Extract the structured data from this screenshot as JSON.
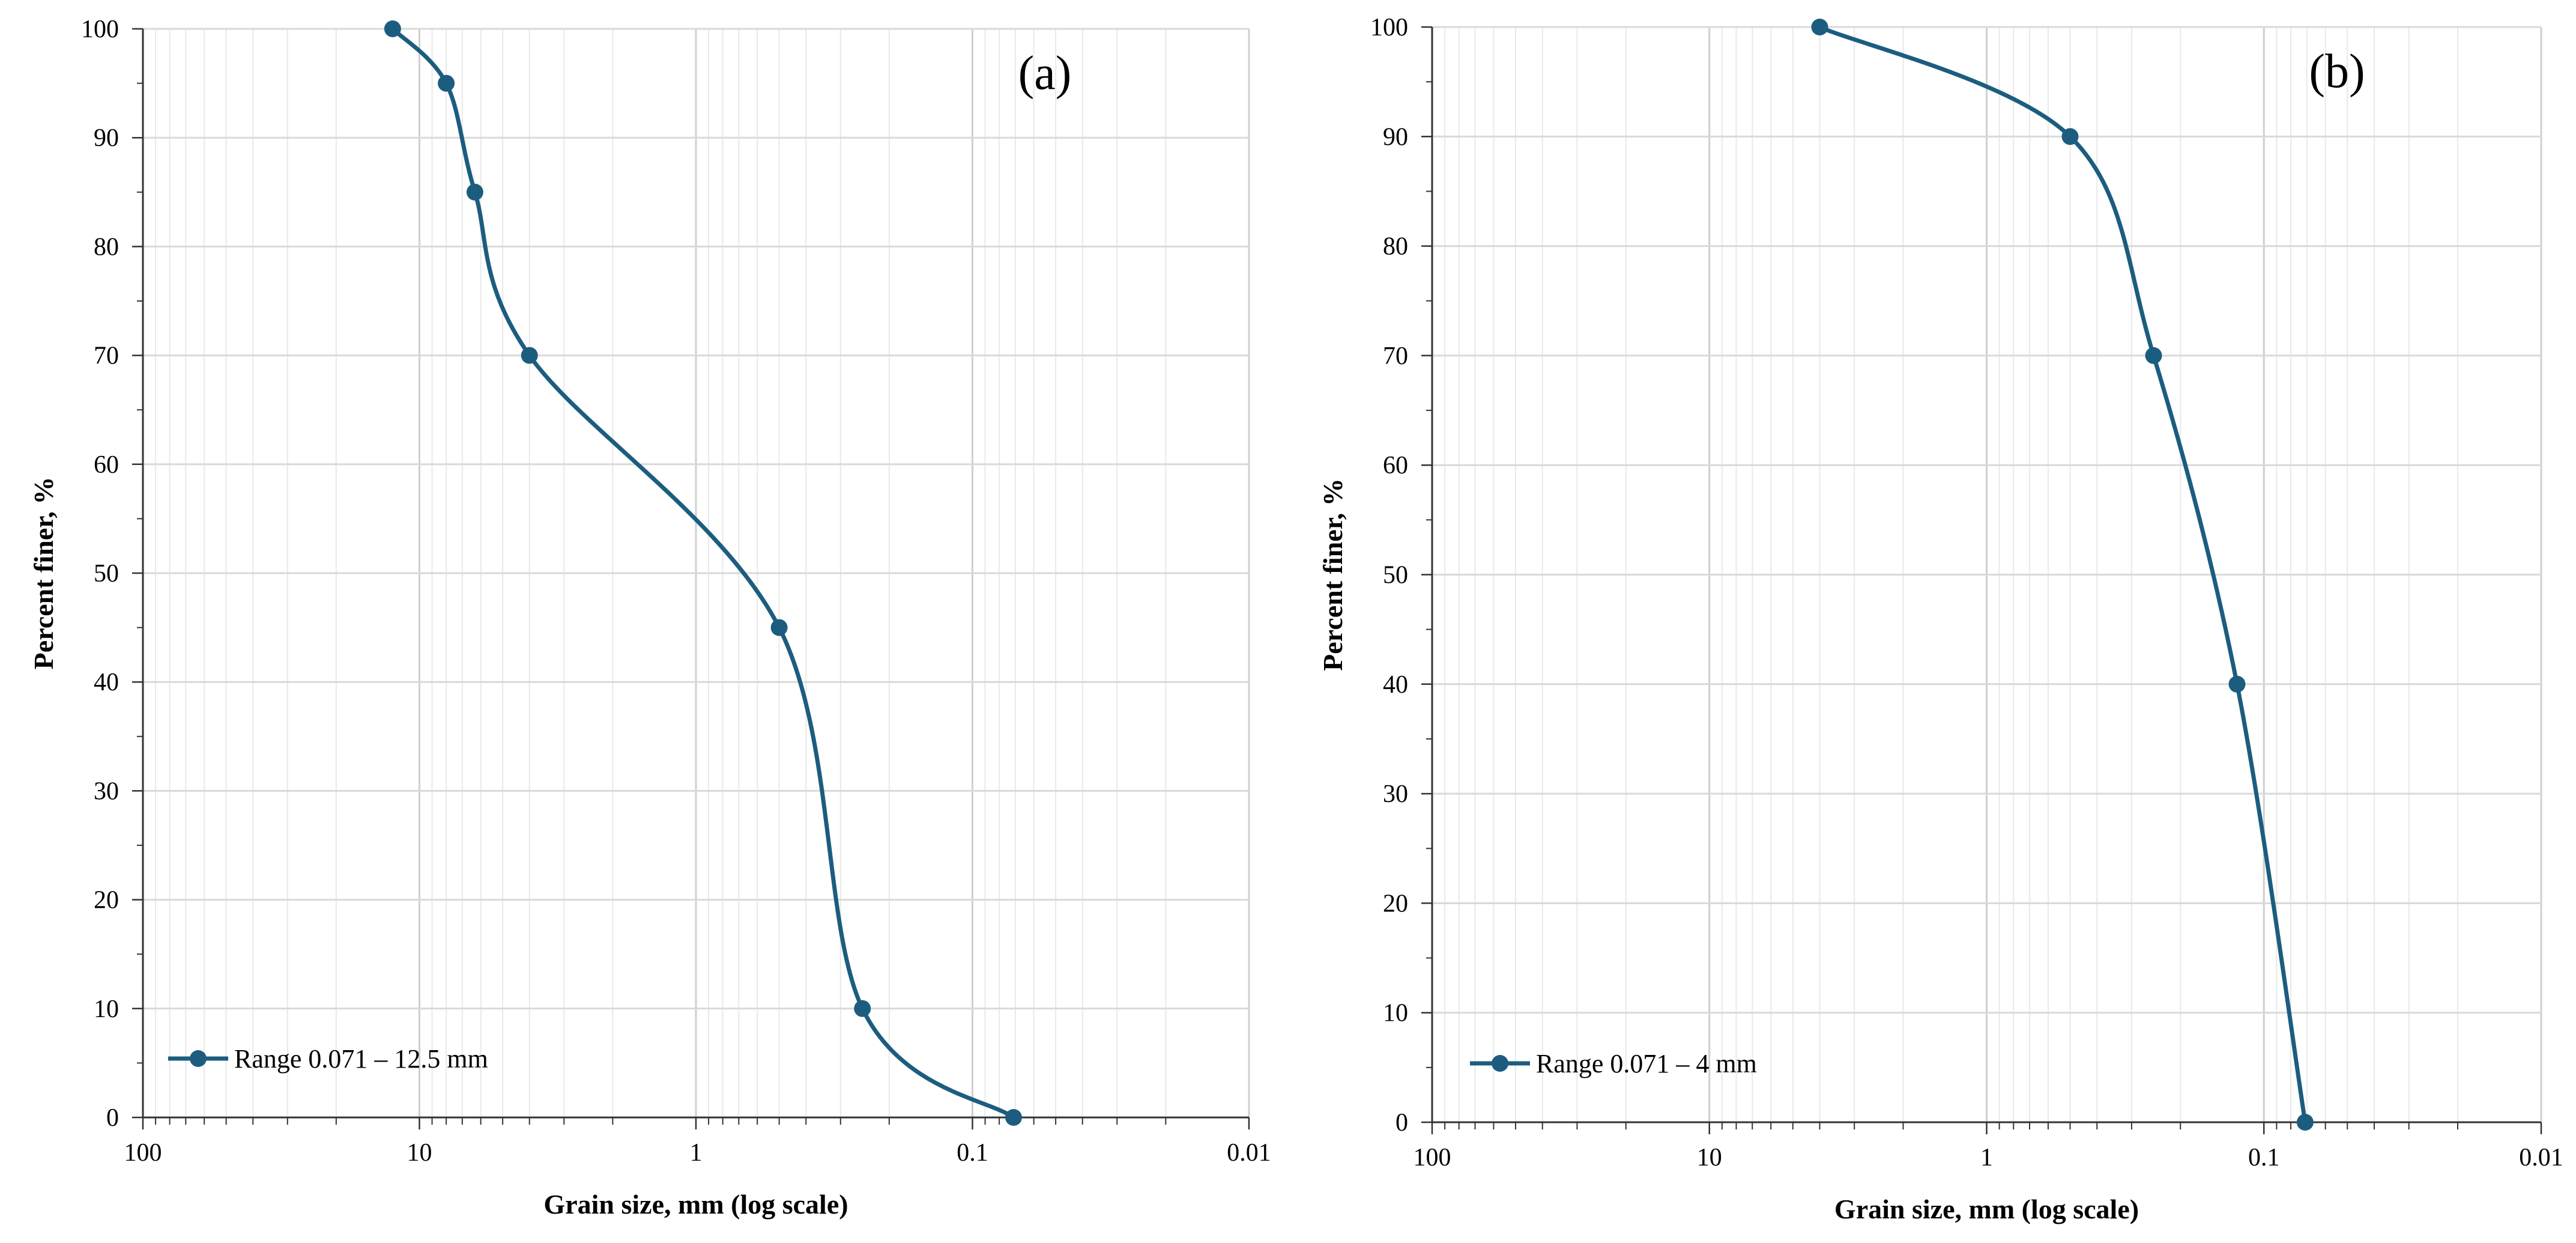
{
  "chart_data": [
    {
      "type": "line",
      "panel_label": "(a)",
      "title": "",
      "xlabel": "Grain size, mm (log scale)",
      "ylabel": "Percent finer, %",
      "x_scale": "log",
      "x_reversed": true,
      "xlim": [
        100,
        0.01
      ],
      "ylim": [
        0,
        100
      ],
      "x_tick_labels": [
        "100",
        "10",
        "1",
        "0.1",
        "0.01"
      ],
      "y_tick_labels": [
        "0",
        "10",
        "20",
        "30",
        "40",
        "50",
        "60",
        "70",
        "80",
        "90",
        "100"
      ],
      "grid": true,
      "legend_position": "bottom-left",
      "series": [
        {
          "name": "Range 0.071 – 12.5 mm",
          "color": "#1c5d7f",
          "x": [
            12.5,
            8.0,
            6.3,
            4.0,
            0.5,
            0.25,
            0.071
          ],
          "y": [
            100,
            95,
            85,
            70,
            45,
            10,
            0
          ]
        }
      ]
    },
    {
      "type": "line",
      "panel_label": "(b)",
      "title": "",
      "xlabel": "Grain size, mm (log scale)",
      "ylabel": "Percent finer, %",
      "x_scale": "log",
      "x_reversed": true,
      "xlim": [
        100,
        0.01
      ],
      "ylim": [
        0,
        100
      ],
      "x_tick_labels": [
        "100",
        "10",
        "1",
        "0.1",
        "0.01"
      ],
      "y_tick_labels": [
        "0",
        "10",
        "20",
        "30",
        "40",
        "50",
        "60",
        "70",
        "80",
        "90",
        "100"
      ],
      "grid": true,
      "legend_position": "bottom-left",
      "series": [
        {
          "name": "Range 0.071 – 4 mm",
          "color": "#1c5d7f",
          "x": [
            4.0,
            0.5,
            0.25,
            0.125,
            0.071
          ],
          "y": [
            100,
            90,
            70,
            40,
            0
          ]
        }
      ]
    }
  ]
}
